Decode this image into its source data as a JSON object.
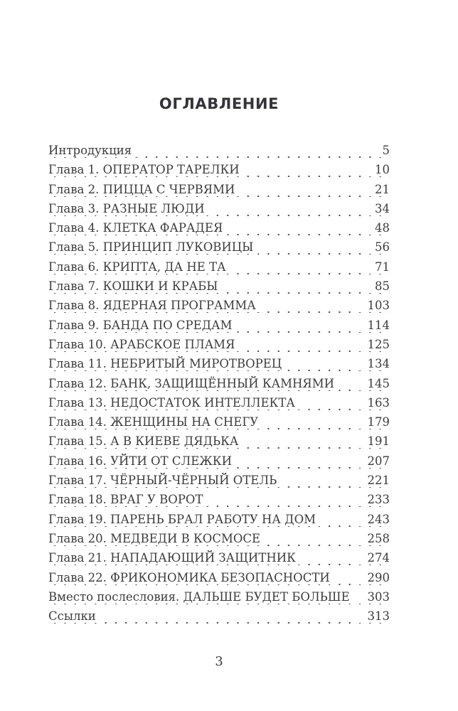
{
  "page": {
    "title": "ОГЛАВЛЕНИЕ",
    "folio": "3",
    "text_color": "#3c3c3c",
    "title_color": "#33333a",
    "background_color": "#ffffff"
  },
  "toc": {
    "entries": [
      {
        "label": "Интродукция",
        "page": "5"
      },
      {
        "label": "Глава 1. ОПЕРАТОР ТАРЕЛКИ",
        "page": "10"
      },
      {
        "label": "Глава 2. ПИЦЦА С ЧЕРВЯМИ",
        "page": "21"
      },
      {
        "label": "Глава 3. РАЗНЫЕ ЛЮДИ",
        "page": "34"
      },
      {
        "label": "Глава 4. КЛЕТКА ФАРАДЕЯ",
        "page": "48"
      },
      {
        "label": "Глава 5. ПРИНЦИП ЛУКОВИЦЫ",
        "page": "56"
      },
      {
        "label": "Глава 6. КРИПТА, ДА НЕ ТА",
        "page": "71"
      },
      {
        "label": "Глава 7. КОШКИ И КРАБЫ",
        "page": "85"
      },
      {
        "label": "Глава 8. ЯДЕРНАЯ ПРОГРАММА",
        "page": "103"
      },
      {
        "label": "Глава 9. БАНДА ПО СРЕДАМ",
        "page": "114"
      },
      {
        "label": "Глава 10. АРАБСКОЕ ПЛАМЯ",
        "page": "125"
      },
      {
        "label": "Глава 11. НЕБРИТЫЙ МИРОТВОРЕЦ",
        "page": "134"
      },
      {
        "label": "Глава 12. БАНК, ЗАЩИЩЁННЫЙ КАМНЯМИ",
        "page": "145"
      },
      {
        "label": "Глава 13. НЕДОСТАТОК ИНТЕЛЛЕКТА",
        "page": "163"
      },
      {
        "label": "Глава 14. ЖЕНЩИНЫ НА СНЕГУ",
        "page": "179"
      },
      {
        "label": "Глава 15. А В КИЕВЕ ДЯДЬКА",
        "page": "191"
      },
      {
        "label": "Глава 16. УЙТИ ОТ СЛЕЖКИ",
        "page": "207"
      },
      {
        "label": "Глава 17. ЧЁРНЫЙ-ЧЁРНЫЙ ОТЕЛЬ",
        "page": "221"
      },
      {
        "label": "Глава 18. ВРАГ У ВОРОТ",
        "page": "233"
      },
      {
        "label": "Глава 19. ПАРЕНЬ БРАЛ РАБОТУ НА ДОМ",
        "page": "243"
      },
      {
        "label": "Глава 20. МЕДВЕДИ В КОСМОСЕ",
        "page": "258"
      },
      {
        "label": "Глава 21. НАПАДАЮЩИЙ ЗАЩИТНИК",
        "page": "274"
      },
      {
        "label": "Глава 22. ФРИКОНОМИКА БЕЗОПАСНОСТИ",
        "page": "290"
      },
      {
        "label": "Вместо послесловия. ДАЛЬШЕ БУДЕТ БОЛЬШЕ",
        "page": "303"
      },
      {
        "label": "Ссылки",
        "page": "313"
      }
    ]
  }
}
